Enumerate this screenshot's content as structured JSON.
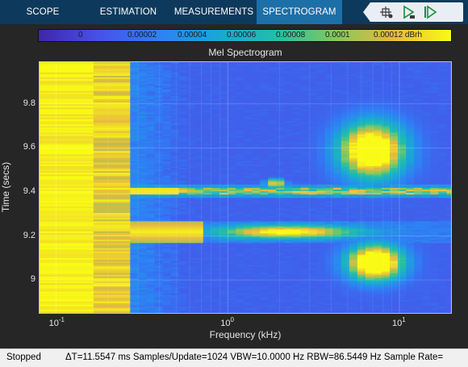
{
  "tabs": [
    {
      "label": "SCOPE",
      "active": false
    },
    {
      "label": "ESTIMATION",
      "active": false
    },
    {
      "label": "MEASUREMENTS",
      "active": false
    },
    {
      "label": "SPECTROGRAM",
      "active": true
    }
  ],
  "toolbar": {
    "icons": [
      "cursor-pin-icon",
      "run-icon",
      "step-forward-icon"
    ]
  },
  "colorbar": {
    "labels": [
      "0",
      "0.00002",
      "0.00004",
      "0.00006",
      "0.00008",
      "0.0001",
      "0.00012 dBrh"
    ],
    "colors": [
      "#3e26a8",
      "#4850e8",
      "#2f7ff5",
      "#19a6d7",
      "#21bdaa",
      "#7fc95f",
      "#e7ba3e",
      "#f9fb15"
    ]
  },
  "chart_data": {
    "type": "heatmap",
    "title": "Mel Spectrogram",
    "xlabel": "Frequency (kHz)",
    "ylabel": "Time (secs)",
    "x_scale": "log",
    "xlim": [
      0.08,
      20
    ],
    "ylim": [
      8.85,
      9.99
    ],
    "x_ticks": [
      {
        "base": "10",
        "exp": "-1"
      },
      {
        "base": "10",
        "exp": "0"
      },
      {
        "base": "10",
        "exp": "1"
      }
    ],
    "y_ticks": [
      "9",
      "9.2",
      "9.4",
      "9.6",
      "9.8"
    ],
    "y_tick_values": [
      9.0,
      9.2,
      9.4,
      9.6,
      9.8
    ],
    "grid": true,
    "features": {
      "saturated_low_band_khz": [
        0.08,
        0.27
      ],
      "tone_line_time": 9.405,
      "burst_time": 9.22,
      "burst_extent_khz": [
        0.27,
        0.75
      ],
      "right_blob_upper": {
        "khz": [
          4.8,
          10
        ],
        "time": [
          9.46,
          9.72
        ]
      },
      "right_blob_lower": {
        "khz": [
          5.5,
          9.5
        ],
        "time": [
          8.99,
          9.17
        ]
      }
    }
  },
  "status": {
    "state": "Stopped",
    "metrics": "ΔT=11.5547 ms  Samples/Update=1024  VBW=10.0000 Hz  RBW=86.5449 Hz  Sample Rate="
  }
}
